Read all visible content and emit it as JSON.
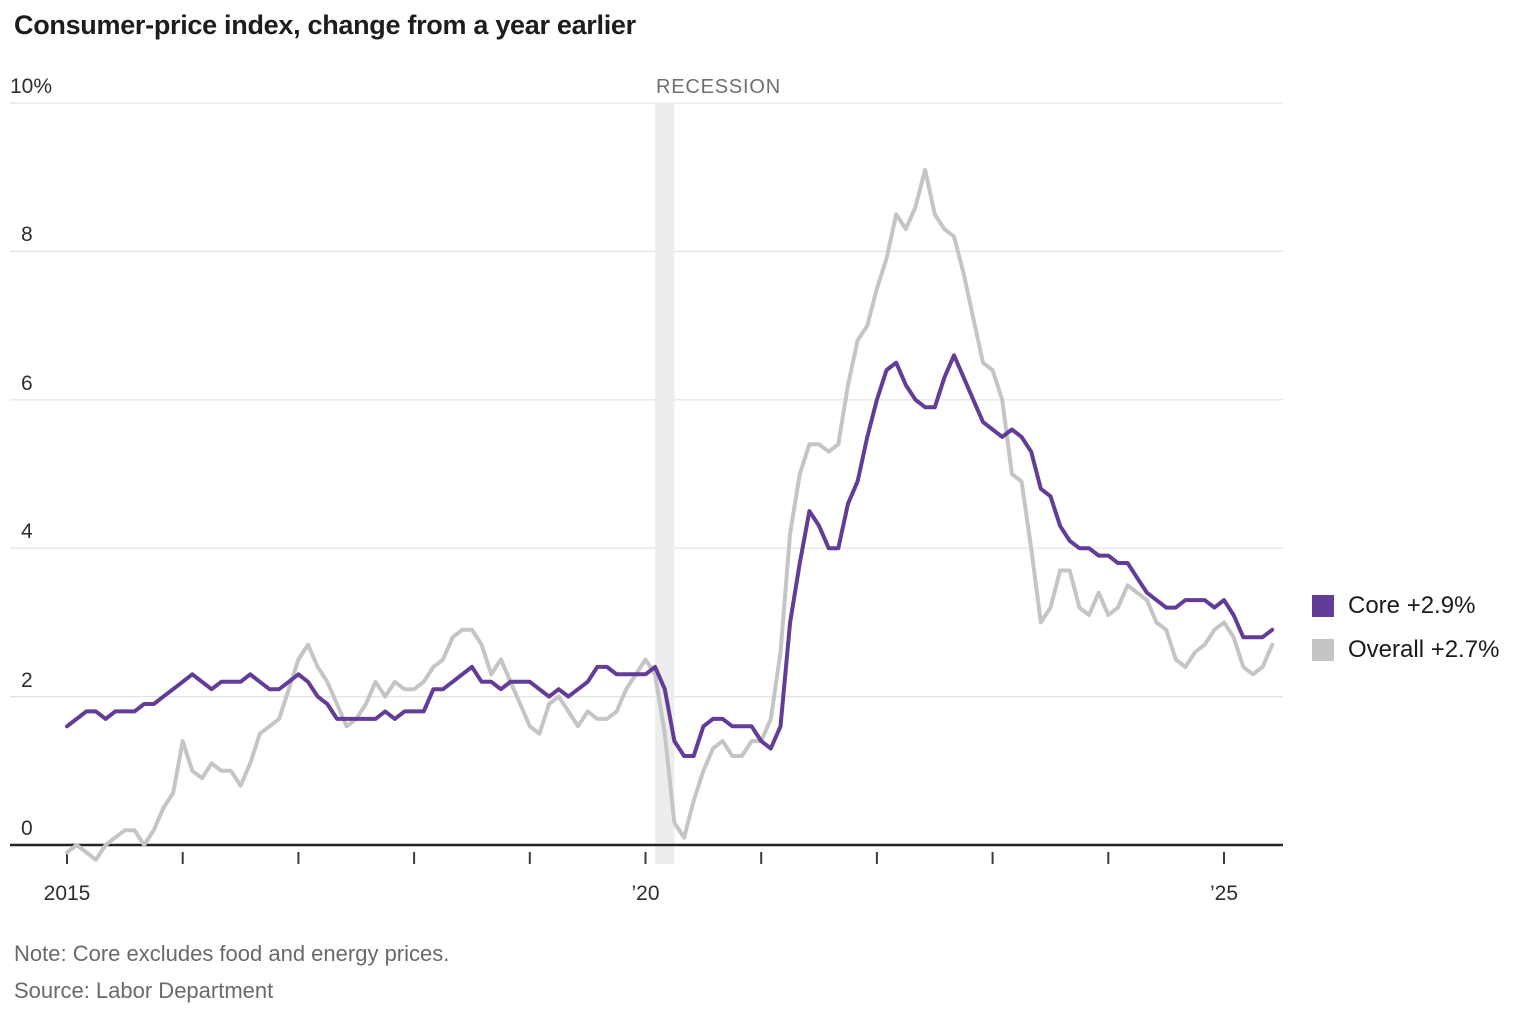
{
  "header": {
    "title": "Consumer-price index, change from a year earlier"
  },
  "annotations": {
    "recession_label": "RECESSION"
  },
  "legend": {
    "items": [
      {
        "name": "core",
        "label": "Core +2.9%",
        "color": "#623c96"
      },
      {
        "name": "overall",
        "label": "Overall +2.7%",
        "color": "#c5c5c5"
      }
    ]
  },
  "footer": {
    "note": "Note: Core excludes food and energy prices.",
    "source": "Source: Labor Department"
  },
  "colors": {
    "core_line": "#623c96",
    "overall_line": "#c5c5c5",
    "gridline": "#e3e3e3",
    "axis": "#232323",
    "tick": "#3c3c3c",
    "recession_band": "#ededed"
  },
  "chart_data": {
    "type": "line",
    "title": "Consumer-price index, change from a year earlier",
    "ylabel": "percent change from a year earlier",
    "frequency": "monthly",
    "x_start_year": 2015,
    "x_start_month": 1,
    "ylim": [
      0,
      10
    ],
    "grid": true,
    "legend_position": "right",
    "y_ticks": [
      {
        "value": 10,
        "label": "10%"
      },
      {
        "value": 8,
        "label": "8"
      },
      {
        "value": 6,
        "label": "6"
      },
      {
        "value": 4,
        "label": "4"
      },
      {
        "value": 2,
        "label": "2"
      },
      {
        "value": 0,
        "label": "0"
      }
    ],
    "x_ticks": [
      {
        "year": 2015,
        "label": "2015"
      },
      {
        "year": 2016,
        "label": ""
      },
      {
        "year": 2017,
        "label": ""
      },
      {
        "year": 2018,
        "label": ""
      },
      {
        "year": 2019,
        "label": ""
      },
      {
        "year": 2020,
        "label": "’20"
      },
      {
        "year": 2021,
        "label": ""
      },
      {
        "year": 2022,
        "label": ""
      },
      {
        "year": 2023,
        "label": ""
      },
      {
        "year": 2024,
        "label": ""
      },
      {
        "year": 2025,
        "label": "’25"
      }
    ],
    "recession_band": {
      "from": "2020-02",
      "to": "2020-04"
    },
    "series": [
      {
        "name": "Overall",
        "latest_label": "Overall +2.7%",
        "color": "#c5c5c5",
        "values": [
          -0.1,
          0.0,
          -0.1,
          -0.2,
          0.0,
          0.1,
          0.2,
          0.2,
          0.0,
          0.2,
          0.5,
          0.7,
          1.4,
          1.0,
          0.9,
          1.1,
          1.0,
          1.0,
          0.8,
          1.1,
          1.5,
          1.6,
          1.7,
          2.1,
          2.5,
          2.7,
          2.4,
          2.2,
          1.9,
          1.6,
          1.7,
          1.9,
          2.2,
          2.0,
          2.2,
          2.1,
          2.1,
          2.2,
          2.4,
          2.5,
          2.8,
          2.9,
          2.9,
          2.7,
          2.3,
          2.5,
          2.2,
          1.9,
          1.6,
          1.5,
          1.9,
          2.0,
          1.8,
          1.6,
          1.8,
          1.7,
          1.7,
          1.8,
          2.1,
          2.3,
          2.5,
          2.3,
          1.5,
          0.3,
          0.1,
          0.6,
          1.0,
          1.3,
          1.4,
          1.2,
          1.2,
          1.4,
          1.4,
          1.7,
          2.6,
          4.2,
          5.0,
          5.4,
          5.4,
          5.3,
          5.4,
          6.2,
          6.8,
          7.0,
          7.5,
          7.9,
          8.5,
          8.3,
          8.6,
          9.1,
          8.5,
          8.3,
          8.2,
          7.7,
          7.1,
          6.5,
          6.4,
          6.0,
          5.0,
          4.9,
          4.0,
          3.0,
          3.2,
          3.7,
          3.7,
          3.2,
          3.1,
          3.4,
          3.1,
          3.2,
          3.5,
          3.4,
          3.3,
          3.0,
          2.9,
          2.5,
          2.4,
          2.6,
          2.7,
          2.9,
          3.0,
          2.8,
          2.4,
          2.3,
          2.4,
          2.7
        ]
      },
      {
        "name": "Core",
        "latest_label": "Core +2.9%",
        "color": "#623c96",
        "values": [
          1.6,
          1.7,
          1.8,
          1.8,
          1.7,
          1.8,
          1.8,
          1.8,
          1.9,
          1.9,
          2.0,
          2.1,
          2.2,
          2.3,
          2.2,
          2.1,
          2.2,
          2.2,
          2.2,
          2.3,
          2.2,
          2.1,
          2.1,
          2.2,
          2.3,
          2.2,
          2.0,
          1.9,
          1.7,
          1.7,
          1.7,
          1.7,
          1.7,
          1.8,
          1.7,
          1.8,
          1.8,
          1.8,
          2.1,
          2.1,
          2.2,
          2.3,
          2.4,
          2.2,
          2.2,
          2.1,
          2.2,
          2.2,
          2.2,
          2.1,
          2.0,
          2.1,
          2.0,
          2.1,
          2.2,
          2.4,
          2.4,
          2.3,
          2.3,
          2.3,
          2.3,
          2.4,
          2.1,
          1.4,
          1.2,
          1.2,
          1.6,
          1.7,
          1.7,
          1.6,
          1.6,
          1.6,
          1.4,
          1.3,
          1.6,
          3.0,
          3.8,
          4.5,
          4.3,
          4.0,
          4.0,
          4.6,
          4.9,
          5.5,
          6.0,
          6.4,
          6.5,
          6.2,
          6.0,
          5.9,
          5.9,
          6.3,
          6.6,
          6.3,
          6.0,
          5.7,
          5.6,
          5.5,
          5.6,
          5.5,
          5.3,
          4.8,
          4.7,
          4.3,
          4.1,
          4.0,
          4.0,
          3.9,
          3.9,
          3.8,
          3.8,
          3.6,
          3.4,
          3.3,
          3.2,
          3.2,
          3.3,
          3.3,
          3.3,
          3.2,
          3.3,
          3.1,
          2.8,
          2.8,
          2.8,
          2.9
        ]
      }
    ]
  }
}
